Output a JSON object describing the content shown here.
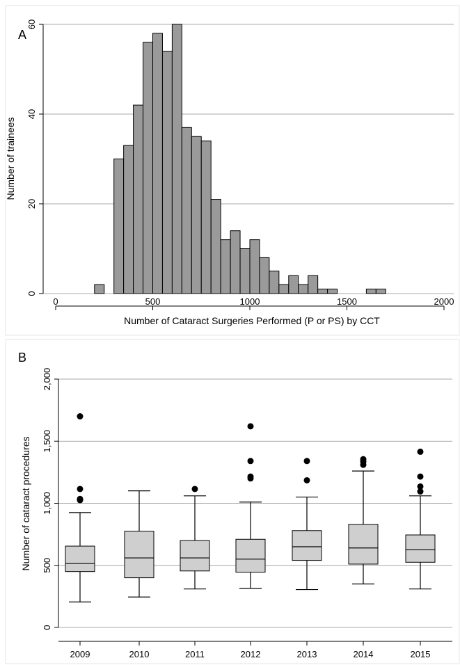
{
  "chart_data": [
    {
      "type": "bar",
      "panel_label": "A",
      "xlabel": "Number of Cataract Surgeries Performed (P or PS) by CCT",
      "ylabel": "Number of trainees",
      "xlim": [
        0,
        2000
      ],
      "ylim": [
        0,
        60
      ],
      "x_ticks": [
        "0",
        "500",
        "1000",
        "1500",
        "2000"
      ],
      "x_tick_values": [
        0,
        500,
        1000,
        1500,
        2000
      ],
      "y_ticks": [
        "0",
        "20",
        "40",
        "60"
      ],
      "y_tick_values": [
        0,
        20,
        40,
        60
      ],
      "grid": true,
      "bin_width": 50,
      "bins": [
        {
          "start": 200,
          "count": 2
        },
        {
          "start": 300,
          "count": 30
        },
        {
          "start": 350,
          "count": 33
        },
        {
          "start": 400,
          "count": 42
        },
        {
          "start": 450,
          "count": 56
        },
        {
          "start": 500,
          "count": 58
        },
        {
          "start": 550,
          "count": 54
        },
        {
          "start": 600,
          "count": 60
        },
        {
          "start": 650,
          "count": 37
        },
        {
          "start": 700,
          "count": 35
        },
        {
          "start": 750,
          "count": 34
        },
        {
          "start": 800,
          "count": 21
        },
        {
          "start": 850,
          "count": 12
        },
        {
          "start": 900,
          "count": 14
        },
        {
          "start": 950,
          "count": 10
        },
        {
          "start": 1000,
          "count": 12
        },
        {
          "start": 1050,
          "count": 8
        },
        {
          "start": 1100,
          "count": 5
        },
        {
          "start": 1150,
          "count": 2
        },
        {
          "start": 1200,
          "count": 4
        },
        {
          "start": 1250,
          "count": 2
        },
        {
          "start": 1300,
          "count": 4
        },
        {
          "start": 1350,
          "count": 1
        },
        {
          "start": 1400,
          "count": 1
        },
        {
          "start": 1600,
          "count": 1
        },
        {
          "start": 1650,
          "count": 1
        }
      ]
    },
    {
      "type": "box",
      "panel_label": "B",
      "xlabel": "",
      "ylabel": "Number of cataract procedures",
      "ylim": [
        0,
        2000
      ],
      "y_ticks": [
        "0",
        "500",
        "1,000",
        "1,500",
        "2,000"
      ],
      "y_tick_values": [
        0,
        500,
        1000,
        1500,
        2000
      ],
      "grid": true,
      "categories": [
        "2009",
        "2010",
        "2011",
        "2012",
        "2013",
        "2014",
        "2015"
      ],
      "boxes": [
        {
          "whisker_low": 205,
          "q1": 450,
          "median": 515,
          "q3": 655,
          "whisker_high": 925,
          "outliers": [
            1700,
            1115,
            1035,
            1025
          ]
        },
        {
          "whisker_low": 245,
          "q1": 400,
          "median": 560,
          "q3": 775,
          "whisker_high": 1100,
          "outliers": []
        },
        {
          "whisker_low": 310,
          "q1": 455,
          "median": 560,
          "q3": 700,
          "whisker_high": 1060,
          "outliers": [
            1115
          ]
        },
        {
          "whisker_low": 315,
          "q1": 445,
          "median": 550,
          "q3": 710,
          "whisker_high": 1010,
          "outliers": [
            1620,
            1340,
            1215,
            1200
          ]
        },
        {
          "whisker_low": 305,
          "q1": 540,
          "median": 650,
          "q3": 780,
          "whisker_high": 1050,
          "outliers": [
            1340,
            1185
          ]
        },
        {
          "whisker_low": 350,
          "q1": 510,
          "median": 640,
          "q3": 830,
          "whisker_high": 1260,
          "outliers": [
            1355,
            1335,
            1310
          ]
        },
        {
          "whisker_low": 310,
          "q1": 525,
          "median": 625,
          "q3": 745,
          "whisker_high": 1060,
          "outliers": [
            1415,
            1215,
            1135,
            1095
          ]
        }
      ]
    }
  ]
}
